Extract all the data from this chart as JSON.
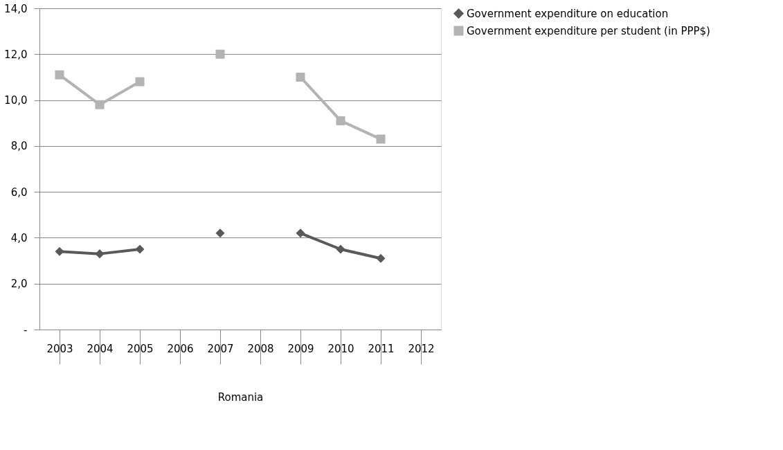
{
  "chart_data": {
    "type": "line",
    "xlabel": "Romania",
    "categories": [
      "2003",
      "2004",
      "2005",
      "2006",
      "2007",
      "2008",
      "2009",
      "2010",
      "2011",
      "2012"
    ],
    "series": [
      {
        "name": "Government expenditure on education",
        "color": "#595959",
        "marker": "diamond",
        "values": [
          3.4,
          3.3,
          3.5,
          null,
          4.2,
          null,
          4.2,
          3.5,
          3.1,
          null
        ]
      },
      {
        "name": "Government expenditure per student (in PPP$)",
        "color": "#b3b3b3",
        "marker": "square",
        "values": [
          11.1,
          9.8,
          10.8,
          null,
          12.0,
          null,
          11.0,
          9.1,
          8.3,
          null
        ]
      }
    ],
    "ylim": [
      0,
      14
    ],
    "yticks": [
      {
        "value": 0,
        "label": "-"
      },
      {
        "value": 2,
        "label": "2,0"
      },
      {
        "value": 4,
        "label": "4,0"
      },
      {
        "value": 6,
        "label": "6,0"
      },
      {
        "value": 8,
        "label": "8,0"
      },
      {
        "value": 10,
        "label": "10,0"
      },
      {
        "value": 12,
        "label": "12,0"
      },
      {
        "value": 14,
        "label": "14,0"
      }
    ],
    "grid": "y",
    "legend": "right",
    "line_style": "solid"
  }
}
